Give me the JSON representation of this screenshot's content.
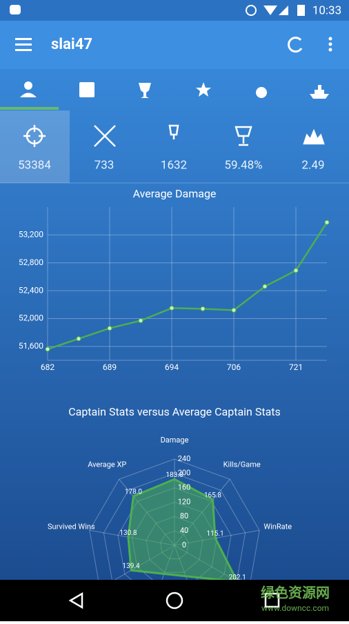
{
  "status_bar": {
    "time": "10:33"
  },
  "app_bar": {
    "title": "slai47"
  },
  "stats": [
    "53384",
    "733",
    "1632",
    "59.48%",
    "2.49"
  ],
  "chart_data": [
    {
      "type": "line",
      "title": "Average Damage",
      "categories": [
        "682",
        null,
        "689",
        null,
        "694",
        null,
        "706",
        null,
        "721",
        null
      ],
      "series": [
        {
          "name": "Average Damage",
          "color": "#4caf50",
          "values": [
            51560,
            51710,
            51860,
            51970,
            52150,
            52140,
            52120,
            52460,
            52690,
            53380
          ]
        }
      ],
      "ylim": [
        51400,
        53600
      ],
      "yticks": [
        {
          "value": 51600,
          "label": "51,600"
        },
        {
          "value": 52000,
          "label": "52,000"
        },
        {
          "value": 52400,
          "label": "52,400"
        },
        {
          "value": 52800,
          "label": "52,800"
        },
        {
          "value": 53200,
          "label": "53,200"
        }
      ],
      "grid": true
    },
    {
      "type": "radar",
      "title": "Captain Stats versus Average Captain Stats",
      "categories": [
        "Damage",
        "Kills/Game",
        "WinRate",
        null,
        null,
        null,
        null,
        "Survived Wins",
        "Average XP"
      ],
      "series": [
        {
          "name": "Captain",
          "color": "#4caf50",
          "values": [
            183.8,
            165.8,
            115.1,
            202.1,
            null,
            null,
            139.4,
            130.8,
            178.0
          ],
          "value_labels": [
            "183.8",
            "165.8",
            "115.1",
            "202.1",
            null,
            null,
            "139.4",
            "130.8",
            "178.0"
          ]
        }
      ],
      "rlim": [
        0,
        240
      ],
      "rticks": [
        0,
        40,
        80,
        120,
        160,
        200,
        240
      ],
      "grid": true
    }
  ],
  "watermark": {
    "title": "绿色资源网",
    "url": "www.downcc.com"
  }
}
